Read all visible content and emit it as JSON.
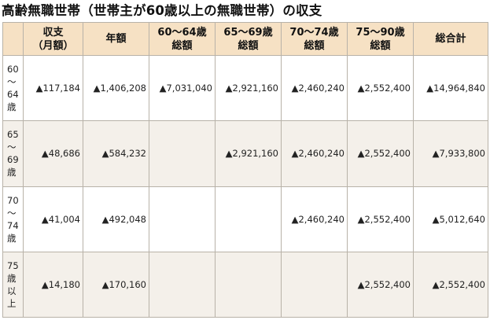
{
  "title": "高齢無職世帯（世帯主が60歳以上の無職世帯）の収支",
  "header": [
    {
      "line1": "収支",
      "line2": "（月額）"
    },
    {
      "line1": "年額",
      "line2": ""
    },
    {
      "line1": "60～64歳",
      "line2": "総額"
    },
    {
      "line1": "65～69歳",
      "line2": "総額"
    },
    {
      "line1": "70～74歳",
      "line2": "総額"
    },
    {
      "line1": "75～90歳",
      "line2": "総額"
    },
    {
      "line1": "総合計",
      "line2": ""
    }
  ],
  "rows": [
    {
      "label": [
        "60",
        "～",
        "64",
        "歳"
      ],
      "monthly": "▲117,184",
      "annual": "▲1,406,208",
      "age_60_64": "▲7,031,040",
      "age_65_69": "▲2,921,160",
      "age_70_74": "▲2,460,240",
      "age_75_90": "▲2,552,400",
      "total": "▲14,964,840"
    },
    {
      "label": [
        "65",
        "～",
        "69",
        "歳"
      ],
      "monthly": "▲48,686",
      "annual": "▲584,232",
      "age_60_64": "",
      "age_65_69": "▲2,921,160",
      "age_70_74": "▲2,460,240",
      "age_75_90": "▲2,552,400",
      "total": "▲7,933,800"
    },
    {
      "label": [
        "70",
        "～",
        "74",
        "歳"
      ],
      "monthly": "▲41,004",
      "annual": "▲492,048",
      "age_60_64": "",
      "age_65_69": "",
      "age_70_74": "▲2,460,240",
      "age_75_90": "▲2,552,400",
      "total": "▲5,012,640"
    },
    {
      "label": [
        "75",
        "歳",
        "以",
        "上"
      ],
      "monthly": "▲14,180",
      "annual": "▲170,160",
      "age_60_64": "",
      "age_65_69": "",
      "age_70_74": "",
      "age_75_90": "▲2,552,400",
      "total": "▲2,552,400"
    }
  ]
}
